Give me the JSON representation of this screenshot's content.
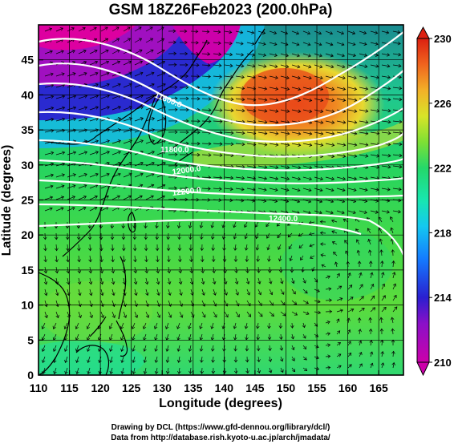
{
  "title": "GSM 18Z26Feb2023 (200.0hPa)",
  "xlabel": "Longitude (degrees)",
  "ylabel": "Latitude  (degrees)",
  "x_ticks": [
    "110",
    "115",
    "120",
    "125",
    "130",
    "135",
    "140",
    "145",
    "150",
    "155",
    "160",
    "165"
  ],
  "y_ticks": [
    "0",
    "5",
    "10",
    "15",
    "20",
    "25",
    "30",
    "35",
    "40",
    "45"
  ],
  "colorbar_ticks": [
    "210",
    "214",
    "218",
    "222",
    "226",
    "230"
  ],
  "contour_labels": [
    "11600.0",
    "11800.0",
    "12000.0",
    "12200.0",
    "12400.0"
  ],
  "footer": {
    "line1": "Drawing by DCL (https://www.gfd-dennou.org/library/dcl/)",
    "line2": "Data from http://database.rish.kyoto-u.ac.jp/arch/jmadata/"
  },
  "chart_data": {
    "type": "heatmap",
    "title": "GSM 18Z26Feb2023 (200.0hPa)",
    "xlabel": "Longitude (degrees)",
    "ylabel": "Latitude  (degrees)",
    "xlim": [
      110,
      169
    ],
    "ylim": [
      0,
      50
    ],
    "colorbar": {
      "min": 210,
      "max": 230,
      "ticks": [
        210,
        214,
        218,
        222,
        226,
        230
      ],
      "colors": [
        "#cc00aa",
        "#2a1fd0",
        "#14b8ff",
        "#18e6a8",
        "#24d86a",
        "#90e030",
        "#f2c428",
        "#f0641e",
        "#dc2010"
      ]
    },
    "contours": [
      {
        "label": "11600.0"
      },
      {
        "label": "11800.0"
      },
      {
        "label": "12000.0"
      },
      {
        "label": "12200.0"
      },
      {
        "label": "12400.0"
      }
    ],
    "grid": true
  },
  "colors": {
    "frame": "#000000",
    "background": "#ffffff"
  }
}
